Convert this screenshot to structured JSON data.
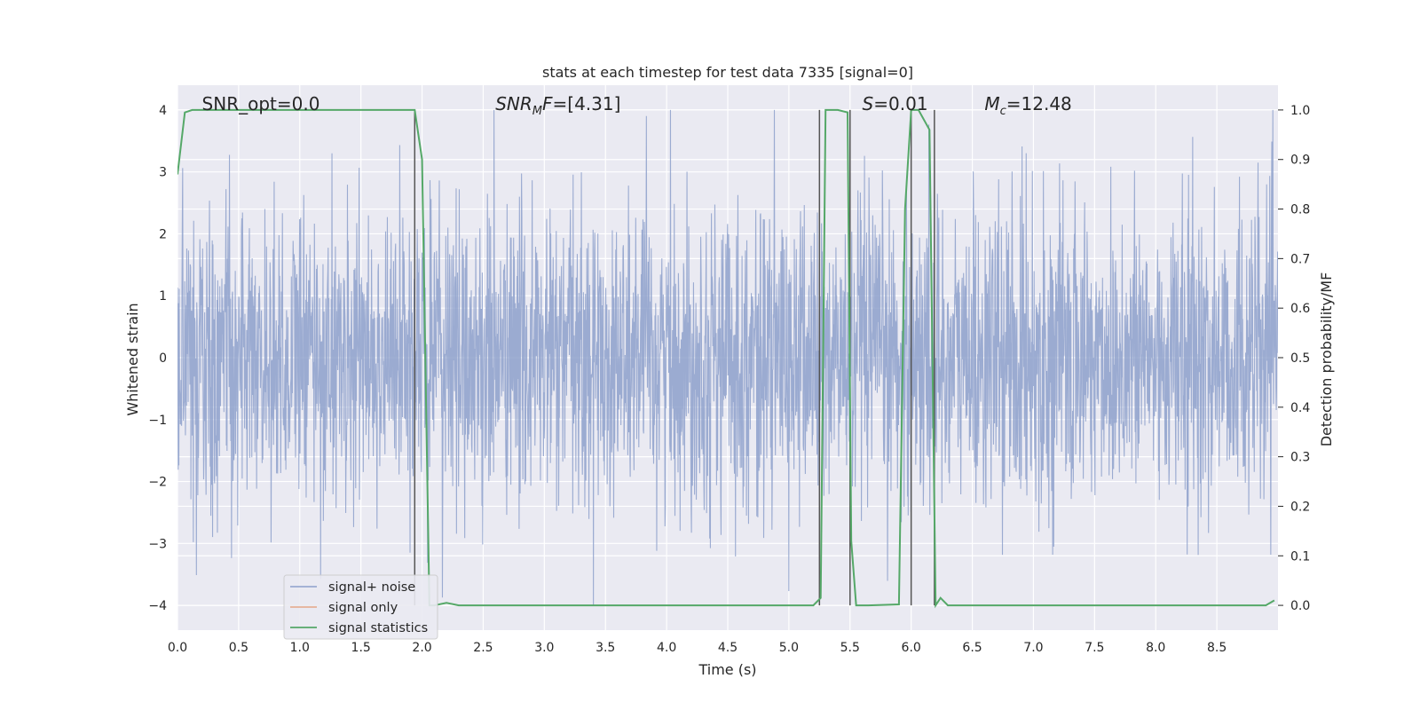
{
  "chart_data": {
    "type": "line",
    "title": "stats at each timestep for test data 7335 [signal=0]",
    "xlabel": "Time (s)",
    "ylabel": "Whitened strain",
    "ylabel_right": "Detection probability/MF",
    "xlim": [
      0.0,
      9.0
    ],
    "ylim": [
      -4.4,
      4.4
    ],
    "ylim_right": [
      -0.05,
      1.05
    ],
    "x_ticks": [
      0.0,
      0.5,
      1.0,
      1.5,
      2.0,
      2.5,
      3.0,
      3.5,
      4.0,
      4.5,
      5.0,
      5.5,
      6.0,
      6.5,
      7.0,
      7.5,
      8.0,
      8.5
    ],
    "x_tick_labels": [
      "0.0",
      "0.5",
      "1.0",
      "1.5",
      "2.0",
      "2.5",
      "3.0",
      "3.5",
      "4.0",
      "4.5",
      "5.0",
      "5.5",
      "6.0",
      "6.5",
      "7.0",
      "7.5",
      "8.0",
      "8.5"
    ],
    "y_ticks": [
      -4,
      -3,
      -2,
      -1,
      0,
      1,
      2,
      3,
      4
    ],
    "y_tick_labels": [
      "−4",
      "−3",
      "−2",
      "−1",
      "0",
      "1",
      "2",
      "3",
      "4"
    ],
    "y_right_ticks": [
      0.0,
      0.1,
      0.2,
      0.3,
      0.4,
      0.5,
      0.6,
      0.7,
      0.8,
      0.9,
      1.0
    ],
    "y_right_tick_labels": [
      "0.0",
      "0.1",
      "0.2",
      "0.3",
      "0.4",
      "0.5",
      "0.6",
      "0.7",
      "0.8",
      "0.9",
      "1.0"
    ],
    "grid": true,
    "legend_position": "lower-left",
    "annotations": [
      {
        "label": "SNR_opt=0.0",
        "x": 0.2
      },
      {
        "label": "SNR_MF=[4.31]",
        "x": 2.6,
        "math": true,
        "base": "SNR",
        "sub": "M",
        "rest": "F=[4.31]"
      },
      {
        "label": "S=0.01",
        "x": 5.6,
        "math": true,
        "base": "S",
        "sub": "",
        "rest": "=0.01"
      },
      {
        "label": "M_c=12.48",
        "x": 6.6,
        "math": true,
        "base": "M",
        "sub": "c",
        "rest": "=12.48"
      }
    ],
    "series": [
      {
        "name": "signal+ noise",
        "color": "#8da0cb",
        "kind": "noise",
        "x_range": [
          0.0,
          9.0
        ],
        "amplitude_std": 1.2,
        "note_values": "dense whitened noise between about -4 and 4"
      },
      {
        "name": "signal only",
        "color": "#e5a688",
        "kind": "flat",
        "values": []
      },
      {
        "name": "signal statistics",
        "color": "#55a868",
        "axis": "right",
        "x": [
          0.0,
          0.06,
          0.12,
          1.92,
          1.94,
          2.0,
          2.06,
          2.1,
          2.2,
          2.3,
          2.4,
          3.5,
          3.7,
          5.2,
          5.26,
          5.3,
          5.4,
          5.48,
          5.51,
          5.55,
          5.65,
          5.9,
          5.95,
          6.0,
          6.06,
          6.15,
          6.2,
          6.24,
          6.3,
          8.9,
          8.97
        ],
        "y": [
          0.87,
          0.995,
          1.0,
          1.0,
          1.0,
          0.9,
          0.0,
          0.0,
          0.005,
          0.0,
          0.0,
          0.0,
          0.0,
          0.0,
          0.015,
          1.0,
          1.0,
          0.995,
          0.13,
          0.0,
          0.0,
          0.002,
          0.8,
          1.0,
          1.0,
          0.96,
          0.0,
          0.015,
          0.0,
          0.0,
          0.01
        ]
      }
    ],
    "vertical_lines": [
      1.94,
      5.25,
      5.5,
      6.0,
      6.19
    ],
    "vertical_line_range_right": [
      0.0,
      1.0
    ]
  }
}
